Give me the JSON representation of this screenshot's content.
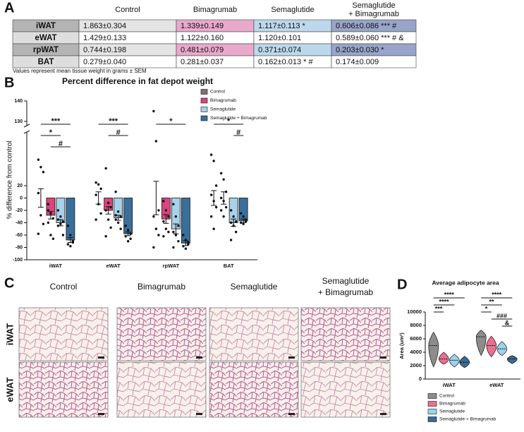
{
  "panel_a": {
    "letter": "A",
    "header": [
      "Control",
      "Bimagrumab",
      "Semaglutide",
      [
        "Semaglutide",
        "+ Bimagrumab"
      ]
    ],
    "shade_colors": [
      "#e4e4e4",
      "#e9a9cb",
      "#bcd8ec",
      "#98a4c9"
    ],
    "rows": [
      {
        "label": "iWAT",
        "shaded": true,
        "cells": [
          "1.863±0.304",
          "1.339±0.149",
          "1.117±0.113 *",
          "0.606±0.086 *** #"
        ]
      },
      {
        "label": "eWAT",
        "shaded": false,
        "cells": [
          "1.429±0.133",
          "1.122±0.160",
          "1.120±0.101",
          "0.589±0.060 *** # &"
        ]
      },
      {
        "label": "rpWAT",
        "shaded": true,
        "cells": [
          "0.744±0.198",
          "0.481±0.079",
          "0.371±0.074",
          "0.203±0.030 *"
        ]
      },
      {
        "label": "BAT",
        "shaded": false,
        "cells": [
          "0.279±0.040",
          "0.281±0.037",
          "0.162±0.013 * #",
          "0.174±0.009"
        ]
      }
    ],
    "note": "Values represent mean tissue weight in grams ± SEM"
  },
  "chart_data": [
    {
      "letter": "B",
      "type": "bar",
      "title": "Percent difference in fat depot weight",
      "y_label": "% difference from control",
      "categories": [
        "iWAT",
        "eWAT",
        "rpWAT",
        "BAT"
      ],
      "series": [
        {
          "name": "Control",
          "color": "#7f7274",
          "values": [
            0,
            0,
            0,
            0
          ],
          "errors": [
            15,
            10,
            27,
            12
          ],
          "points": [
            [
              62,
              50,
              42,
              8,
              -28,
              -42,
              -58
            ],
            [
              25,
              22,
              15,
              5,
              -10,
              -25,
              -35
            ],
            [
              135,
              92,
              -20,
              -30,
              -50,
              -60,
              -80
            ],
            [
              70,
              60,
              20,
              5,
              -5,
              -15,
              -30,
              -50
            ]
          ]
        },
        {
          "name": "Bimagrumab",
          "color": "#d9457f",
          "values": [
            -28,
            -20,
            -34,
            0
          ],
          "errors": [
            6,
            6,
            7,
            10
          ],
          "points": [
            [
              -10,
              -25,
              -33,
              -40,
              -60,
              -66,
              -20
            ],
            [
              48,
              -8,
              -15,
              -20,
              -35,
              -48,
              -62
            ],
            [
              -5,
              -20,
              -30,
              -38,
              -50,
              -55,
              -62
            ],
            [
              40,
              30,
              10,
              0,
              -5,
              -15,
              -20,
              -30
            ]
          ]
        },
        {
          "name": "Semaglutide",
          "color": "#a8d1ea",
          "values": [
            -40,
            -32,
            -50,
            -40
          ],
          "errors": [
            5,
            4,
            8,
            6
          ],
          "points": [
            [
              -20,
              -30,
              -38,
              -45,
              -42,
              -60,
              -35
            ],
            [
              10,
              -22,
              -30,
              -35,
              -40,
              -50,
              -28
            ],
            [
              -10,
              -30,
              -45,
              -55,
              -60,
              -70,
              -80
            ],
            [
              -20,
              -30,
              -38,
              -40,
              -45,
              -55,
              -68
            ]
          ]
        },
        {
          "name": "Semaglutide + Bimagrumab",
          "color": "#3a6f9a",
          "values": [
            -68,
            -58,
            -73,
            -37
          ],
          "errors": [
            4,
            3,
            4,
            3
          ],
          "points": [
            [
              -45,
              -60,
              -70,
              -75,
              -78,
              -72
            ],
            [
              -45,
              -52,
              -58,
              -62,
              -70,
              -66
            ],
            [
              -60,
              -68,
              -72,
              -78,
              -82,
              -75
            ],
            [
              -25,
              -30,
              -35,
              -40,
              -42,
              -38
            ]
          ]
        }
      ],
      "ylim": [
        -100,
        140
      ],
      "axis_break": [
        100,
        130
      ],
      "yticks": [
        -100,
        -80,
        -60,
        -40,
        -20,
        0,
        20,
        130,
        140
      ],
      "significance": [
        {
          "text": "***",
          "category": "iWAT",
          "between": [
            "Control",
            "Semaglutide + Bimagrumab"
          ]
        },
        {
          "text": "*",
          "category": "iWAT",
          "between": [
            "Control",
            "Semaglutide"
          ]
        },
        {
          "text": "#",
          "category": "iWAT",
          "between": [
            "Bimagrumab",
            "Semaglutide + Bimagrumab"
          ]
        },
        {
          "text": "***",
          "category": "eWAT",
          "between": [
            "Control",
            "Semaglutide + Bimagrumab"
          ]
        },
        {
          "text": "#",
          "category": "eWAT",
          "between": [
            "Bimagrumab",
            "Semaglutide + Bimagrumab"
          ]
        },
        {
          "text": "*",
          "category": "rpWAT",
          "between": [
            "Control",
            "Semaglutide + Bimagrumab"
          ]
        },
        {
          "text": "*",
          "category": "BAT",
          "between": [
            "Control",
            "Semaglutide + Bimagrumab"
          ]
        },
        {
          "text": "#",
          "category": "BAT",
          "between": [
            "Semaglutide",
            "Semaglutide + Bimagrumab"
          ]
        }
      ]
    },
    {
      "letter": "D",
      "type": "violin",
      "title": "Average adipocyte area",
      "y_label": "Area (um²)",
      "categories": [
        "iWAT",
        "eWAT"
      ],
      "series": [
        {
          "name": "Control",
          "color": "#8c8c8c",
          "values": [
            5000,
            6300
          ],
          "min": [
            1800,
            3500
          ],
          "max": [
            7000,
            7300
          ]
        },
        {
          "name": "Bimagrumab",
          "color": "#e8708f",
          "values": [
            3000,
            5000
          ],
          "min": [
            2200,
            3300
          ],
          "max": [
            4000,
            6400
          ]
        },
        {
          "name": "Semaglutide",
          "color": "#9fd0ee",
          "values": [
            2800,
            4500
          ],
          "min": [
            1800,
            3500
          ],
          "max": [
            3700,
            5600
          ]
        },
        {
          "name": "Semaglutide + Bimagrumab",
          "color": "#3b6b93",
          "values": [
            2500,
            3000
          ],
          "min": [
            1700,
            2300
          ],
          "max": [
            3400,
            3500
          ]
        }
      ],
      "ylim": [
        0,
        10000
      ],
      "yticks": [
        0,
        2000,
        4000,
        6000,
        8000,
        10000
      ],
      "significance": [
        {
          "text": "****",
          "category": "iWAT",
          "between": [
            "Control",
            "Semaglutide + Bimagrumab"
          ]
        },
        {
          "text": "****",
          "category": "iWAT",
          "between": [
            "Control",
            "Semaglutide"
          ]
        },
        {
          "text": "***",
          "category": "iWAT",
          "between": [
            "Control",
            "Bimagrumab"
          ]
        },
        {
          "text": "****",
          "category": "eWAT",
          "between": [
            "Control",
            "Semaglutide + Bimagrumab"
          ]
        },
        {
          "text": "**",
          "category": "eWAT",
          "between": [
            "Control",
            "Semaglutide"
          ]
        },
        {
          "text": "*",
          "category": "eWAT",
          "between": [
            "Control",
            "Bimagrumab"
          ]
        },
        {
          "text": "###",
          "category": "eWAT",
          "between": [
            "Bimagrumab",
            "Semaglutide + Bimagrumab"
          ]
        },
        {
          "text": "&",
          "category": "eWAT",
          "between": [
            "Semaglutide",
            "Semaglutide + Bimagrumab"
          ]
        }
      ]
    }
  ],
  "panel_c": {
    "letter": "C",
    "columns": [
      "Control",
      "Bimagrumab",
      "Semaglutide",
      [
        "Semaglutide",
        "+ Bimagrumab"
      ]
    ],
    "rows": [
      "iWAT",
      "eWAT"
    ]
  }
}
